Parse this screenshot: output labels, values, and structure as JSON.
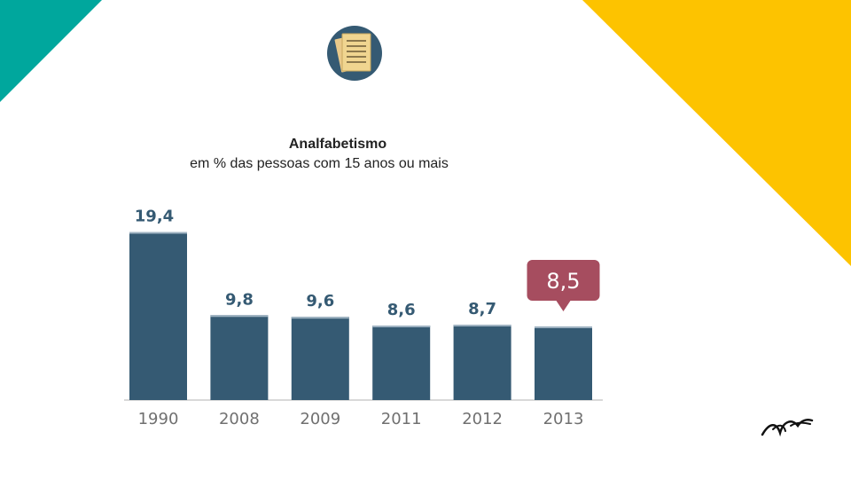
{
  "colors": {
    "bar": "#355a73",
    "highlight": "#a64d5f",
    "teal": "#00a79d",
    "yellow": "#fdc300",
    "value_text": "#355a73",
    "tick_text": "#707070"
  },
  "icons": {
    "top": "document-icon",
    "logo": "bird-logo-icon"
  },
  "chart_data": {
    "type": "bar",
    "title": "Analfabetismo",
    "subtitle": "em % das pessoas com 15 anos ou mais",
    "categories": [
      "1990",
      "2008",
      "2009",
      "2011",
      "2012",
      "2013"
    ],
    "values": [
      19.4,
      9.8,
      9.6,
      8.6,
      8.7,
      8.5
    ],
    "labels": [
      "19,4",
      "9,8",
      "9,6",
      "8,6",
      "8,7",
      "8,5"
    ],
    "highlight_index": 5,
    "xlabel": "",
    "ylabel": "",
    "ylim": [
      0,
      20
    ]
  }
}
